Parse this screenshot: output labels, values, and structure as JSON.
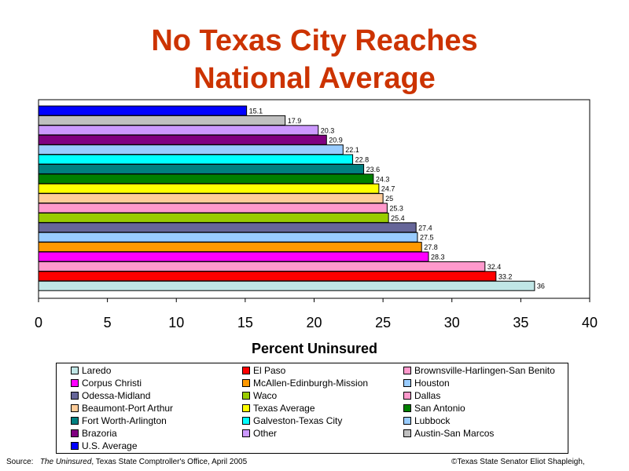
{
  "chart_data": {
    "type": "bar",
    "orientation": "horizontal",
    "title_line1": "No Texas City Reaches",
    "title_line2": "National Average",
    "xlabel": "Percent Uninsured",
    "xlim": [
      0,
      40
    ],
    "xticks": [
      "0",
      "5",
      "10",
      "15",
      "20",
      "25",
      "30",
      "35",
      "40"
    ],
    "bars": [
      {
        "label": "U.S. Average",
        "value": 15.1,
        "value_label": "15.1",
        "color": "#0000ff"
      },
      {
        "label": "Austin-San Marcos",
        "value": 17.9,
        "value_label": "17.9",
        "color": "#c0c0c0"
      },
      {
        "label": "Other",
        "value": 20.3,
        "value_label": "20.3",
        "color": "#cc99ff"
      },
      {
        "label": "Brazoria",
        "value": 20.9,
        "value_label": "20.9",
        "color": "#800080"
      },
      {
        "label": "Lubbock",
        "value": 22.1,
        "value_label": "22.1",
        "color": "#99ccff"
      },
      {
        "label": "Galveston-Texas City",
        "value": 22.8,
        "value_label": "22.8",
        "color": "#00ffff"
      },
      {
        "label": "Fort Worth-Arlington",
        "value": 23.6,
        "value_label": "23.6",
        "color": "#008080"
      },
      {
        "label": "San Antonio",
        "value": 24.3,
        "value_label": "24.3",
        "color": "#008000"
      },
      {
        "label": "Texas Average",
        "value": 24.7,
        "value_label": "24.7",
        "color": "#ffff00"
      },
      {
        "label": "Beaumont-Port Arthur",
        "value": 25.0,
        "value_label": "25",
        "color": "#ffcc99"
      },
      {
        "label": "Dallas",
        "value": 25.3,
        "value_label": "25.3",
        "color": "#ff99cc"
      },
      {
        "label": "Waco",
        "value": 25.4,
        "value_label": "25.4",
        "color": "#99cc00"
      },
      {
        "label": "Odessa-Midland",
        "value": 27.4,
        "value_label": "27.4",
        "color": "#666699"
      },
      {
        "label": "Houston",
        "value": 27.5,
        "value_label": "27.5",
        "color": "#99ccff"
      },
      {
        "label": "McAllen-Edinburgh-Mission",
        "value": 27.8,
        "value_label": "27.8",
        "color": "#ff9900"
      },
      {
        "label": "Corpus Christi",
        "value": 28.3,
        "value_label": "28.3",
        "color": "#ff00ff"
      },
      {
        "label": "Brownsville-Harlingen-San Benito",
        "value": 32.4,
        "value_label": "32.4",
        "color": "#ff99cc"
      },
      {
        "label": "El Paso",
        "value": 33.2,
        "value_label": "33.2",
        "color": "#ff0000"
      },
      {
        "label": "Laredo",
        "value": 36.0,
        "value_label": "36",
        "color": "#c0e6e6"
      }
    ],
    "legend": {
      "placement": "bottom",
      "columns": 3,
      "entries": [
        {
          "label": "Laredo",
          "color": "#c0e6e6"
        },
        {
          "label": "El Paso",
          "color": "#ff0000"
        },
        {
          "label": "Brownsville-Harlingen-San Benito",
          "color": "#ff99cc"
        },
        {
          "label": "Corpus Christi",
          "color": "#ff00ff"
        },
        {
          "label": "McAllen-Edinburgh-Mission",
          "color": "#ff9900"
        },
        {
          "label": "Houston",
          "color": "#99ccff"
        },
        {
          "label": "Odessa-Midland",
          "color": "#666699"
        },
        {
          "label": "Waco",
          "color": "#99cc00"
        },
        {
          "label": "Dallas",
          "color": "#ff99cc"
        },
        {
          "label": "Beaumont-Port Arthur",
          "color": "#ffcc99"
        },
        {
          "label": "Texas Average",
          "color": "#ffff00"
        },
        {
          "label": "San Antonio",
          "color": "#008000"
        },
        {
          "label": "Fort Worth-Arlington",
          "color": "#008080"
        },
        {
          "label": "Galveston-Texas City",
          "color": "#00ffff"
        },
        {
          "label": "Lubbock",
          "color": "#99ccff"
        },
        {
          "label": "Brazoria",
          "color": "#800080"
        },
        {
          "label": "Other",
          "color": "#cc99ff"
        },
        {
          "label": "Austin-San Marcos",
          "color": "#c0c0c0"
        },
        {
          "label": "U.S. Average",
          "color": "#0000ff"
        }
      ]
    }
  },
  "footer": {
    "source_prefix": "Source:",
    "source_title": "The Uninsured",
    "source_rest": ", Texas State Comptroller's Office, April 2005",
    "credit": "©Texas State Senator Eliot Shapleigh,"
  },
  "colors": {
    "title": "#cc3300"
  }
}
